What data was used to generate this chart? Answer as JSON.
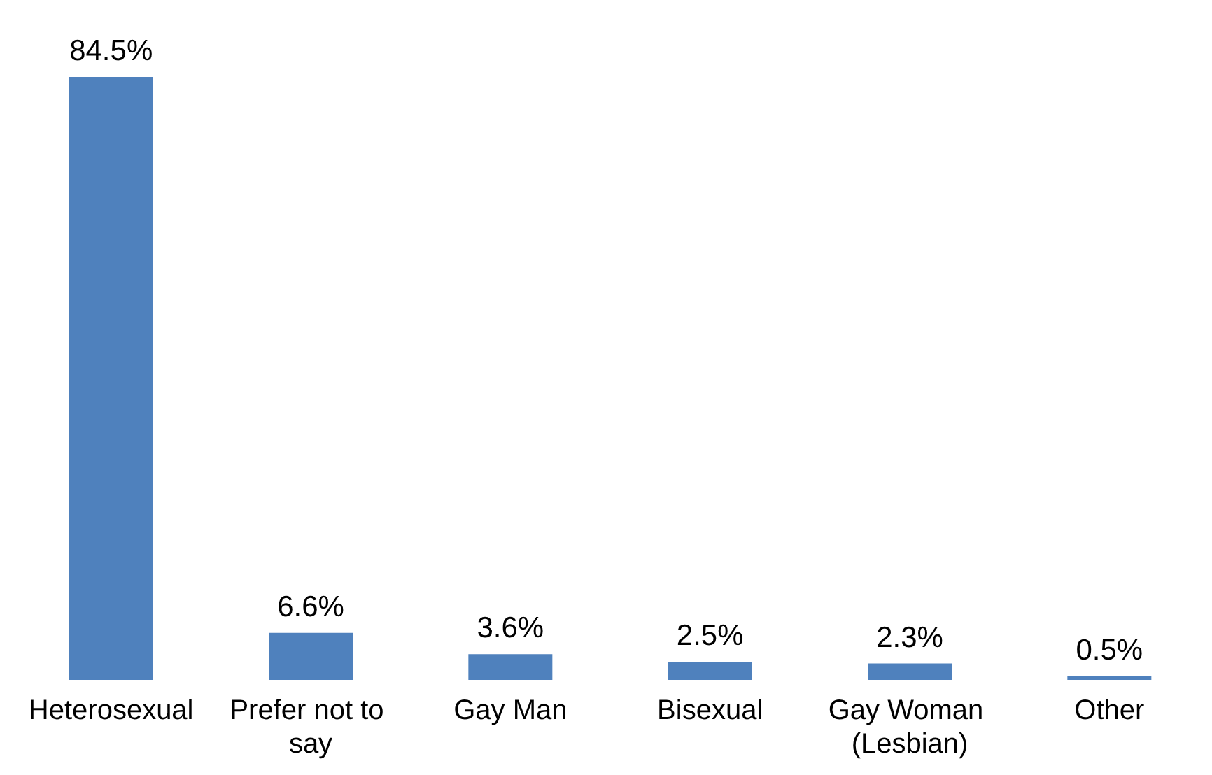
{
  "chart_data": {
    "type": "bar",
    "categories": [
      "Heterosexual",
      "Prefer not to say",
      "Gay Man",
      "Bisexual",
      "Gay Woman (Lesbian)",
      "Other"
    ],
    "values": [
      84.5,
      6.6,
      3.6,
      2.5,
      2.3,
      0.5
    ],
    "value_labels": [
      "84.5%",
      "6.6%",
      "3.6%",
      "2.5%",
      "2.3%",
      "0.5%"
    ],
    "color": "#4f81bd",
    "tick_labels": "x",
    "grid": false
  }
}
